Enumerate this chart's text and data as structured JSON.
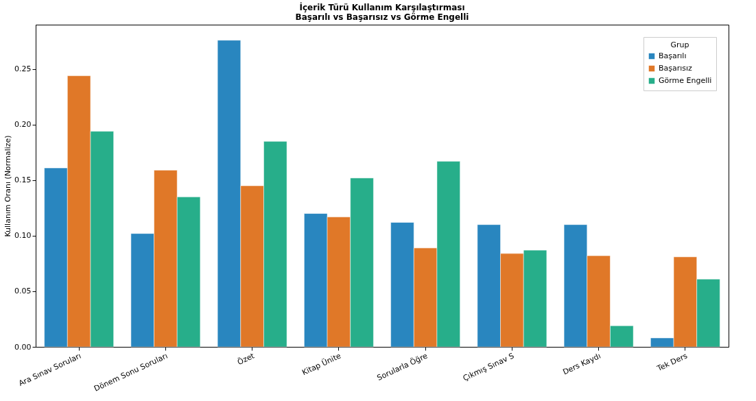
{
  "chart_data": {
    "type": "bar",
    "title": "İçerik Türü Kullanım Karşılaştırması\nBaşarılı vs Başarısız vs Görme Engelli",
    "ylabel": "Kullanım Oranı (Normalize)",
    "legend_title": "Grup",
    "categories": [
      "Ara Sınav Soruları",
      "Dönem Sonu Soruları",
      "Özet",
      "Kitap Ünite",
      "Sorularla Öğre",
      "Çıkmış Sınav S",
      "Ders Kaydı",
      "Tek Ders"
    ],
    "series": [
      {
        "name": "Başarılı",
        "color": "#2986bf",
        "values": [
          0.161,
          0.102,
          0.276,
          0.12,
          0.112,
          0.11,
          0.11,
          0.008
        ]
      },
      {
        "name": "Başarısız",
        "color": "#e07828",
        "values": [
          0.244,
          0.159,
          0.145,
          0.117,
          0.089,
          0.084,
          0.082,
          0.081
        ]
      },
      {
        "name": "Görme Engelli",
        "color": "#27ae8a",
        "values": [
          0.194,
          0.135,
          0.185,
          0.152,
          0.167,
          0.087,
          0.019,
          0.061
        ]
      }
    ],
    "ylim": [
      0,
      0.29
    ],
    "yticks": [
      {
        "value": 0,
        "label": "0.00"
      },
      0.05,
      {
        "value": 0.1,
        "label": "0.10"
      },
      0.15,
      {
        "value": 0.2,
        "label": "0.20"
      },
      0.25
    ],
    "legend": "top right",
    "grid": false
  }
}
